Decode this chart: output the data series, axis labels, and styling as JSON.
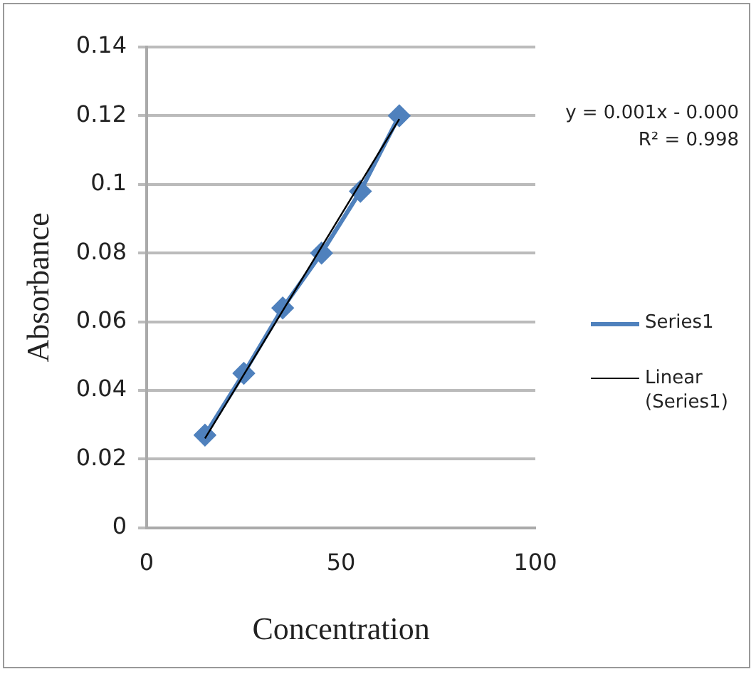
{
  "chart_data": {
    "type": "line",
    "xlabel": "Concentration",
    "ylabel": "Absorbance",
    "x": [
      15,
      25,
      35,
      45,
      55,
      65
    ],
    "series": [
      {
        "name": "Series1",
        "color": "#4f81bd",
        "values": [
          0.027,
          0.045,
          0.064,
          0.08,
          0.098,
          0.12
        ],
        "marker": "diamond"
      },
      {
        "name": "Linear (Series1)",
        "type": "line",
        "color": "#000000",
        "x": [
          15,
          65
        ],
        "values": [
          0.026,
          0.119
        ],
        "marker": "none"
      }
    ],
    "xlim": [
      0,
      100
    ],
    "xticks": [
      0,
      50,
      100
    ],
    "ylim": [
      0,
      0.14
    ],
    "yticks": [
      0,
      0.02,
      0.04,
      0.06,
      0.08,
      0.1,
      0.12,
      0.14
    ],
    "annotations": [
      "y = 0.001x - 0.000",
      "R² = 0.998"
    ],
    "grid": "y",
    "legend": "right",
    "line_style": "solid"
  }
}
